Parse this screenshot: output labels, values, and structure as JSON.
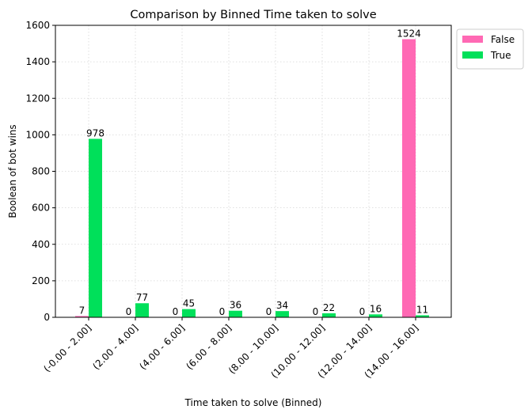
{
  "chart_data": {
    "type": "bar",
    "title": "Comparison by Binned Time taken to solve",
    "xlabel": "Time taken to solve (Binned)",
    "ylabel": "Boolean of bot wins",
    "ylim": [
      0,
      1600
    ],
    "yticks": [
      0,
      200,
      400,
      600,
      800,
      1000,
      1200,
      1400,
      1600
    ],
    "grid": true,
    "legend_position": "outside top-right",
    "categories": [
      "(-0.00 -  2.00]",
      "(2.00 -  4.00]",
      "(4.00 -  6.00]",
      "(6.00 -  8.00]",
      "(8.00 -  10.00]",
      "(10.00 -  12.00]",
      "(12.00 -  14.00]",
      "(14.00 -  16.00]"
    ],
    "series": [
      {
        "name": "False",
        "color": "#ff69b4",
        "values": [
          7,
          0,
          0,
          0,
          0,
          0,
          0,
          1524
        ]
      },
      {
        "name": "True",
        "color": "#00e05a",
        "values": [
          978,
          77,
          45,
          36,
          34,
          22,
          16,
          11
        ]
      }
    ]
  }
}
